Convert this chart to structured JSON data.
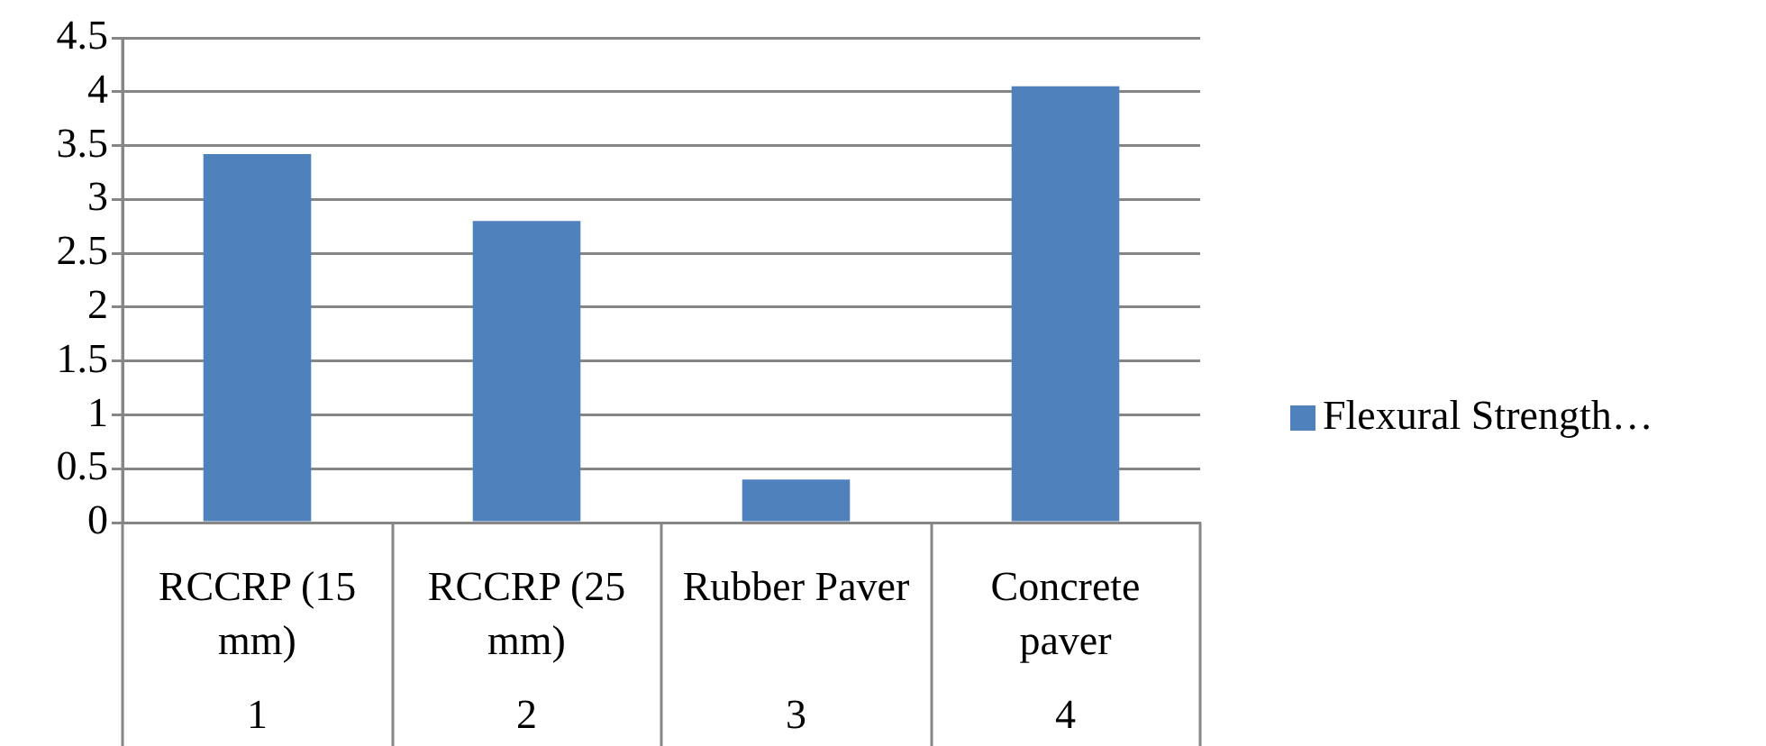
{
  "chart_data": {
    "type": "bar",
    "categories": [
      "RCCRP (15 mm)",
      "RCCRP (25 mm)",
      "Rubber Paver",
      "Concrete paver"
    ],
    "series": [
      {
        "name": "Flexural Strength…",
        "color": "#4f81bd",
        "values": [
          3.42,
          2.8,
          0.4,
          4.05
        ]
      }
    ],
    "ylim": [
      0,
      4.5
    ],
    "yticks": [
      0,
      0.5,
      1,
      1.5,
      2,
      2.5,
      3,
      3.5,
      4,
      4.5
    ],
    "grid": "y",
    "legend": "right",
    "annotations": [
      "1",
      "2",
      "3",
      "4"
    ]
  }
}
